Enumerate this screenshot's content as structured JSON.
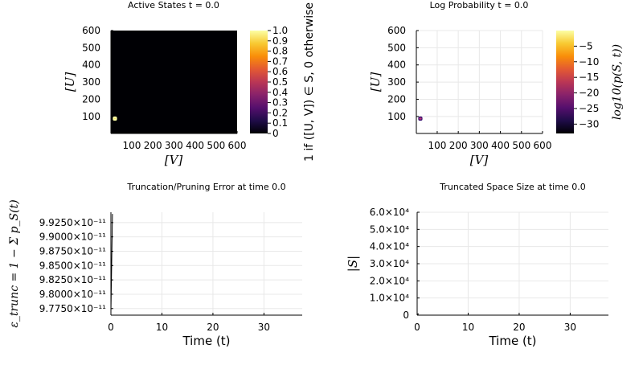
{
  "colors": {
    "colormap": [
      "#000004",
      "#1f0c48",
      "#550f6d",
      "#88226a",
      "#ba3655",
      "#e35933",
      "#f98e09",
      "#f8c932",
      "#fcffa4"
    ],
    "axis": "#000000",
    "grid": "#e8e8e8",
    "series": "#000000"
  },
  "chart_data": [
    {
      "id": "active-states",
      "type": "heatmap",
      "title": "Active States t = 0.0",
      "xlabel": "[V]",
      "ylabel": "[U]",
      "xlim": [
        1,
        600
      ],
      "ylim": [
        1,
        600
      ],
      "xticks": [
        "100",
        "200",
        "300",
        "400",
        "500",
        "600"
      ],
      "yticks": [
        "100",
        "200",
        "300",
        "400",
        "500",
        "600"
      ],
      "colorbar": {
        "label": "1 if ([U, V]) ∈ S, 0 otherwise",
        "range": [
          0,
          1
        ],
        "ticks": [
          "0",
          "0.1",
          "0.2",
          "0.3",
          "0.4",
          "0.5",
          "0.6",
          "0.7",
          "0.8",
          "0.9",
          "1.0"
        ]
      },
      "active_region": {
        "v_range": [
          10,
          30
        ],
        "u_range": [
          75,
          100
        ],
        "value": 1
      },
      "background_value": 0
    },
    {
      "id": "log-probability",
      "type": "heatmap",
      "title": "Log Probability t = 0.0",
      "xlabel": "[V]",
      "ylabel": "[U]",
      "xlim": [
        1,
        600
      ],
      "ylim": [
        1,
        600
      ],
      "xticks": [
        "100",
        "200",
        "300",
        "400",
        "500",
        "600"
      ],
      "yticks": [
        "100",
        "200",
        "300",
        "400",
        "500",
        "600"
      ],
      "grid": true,
      "colorbar": {
        "label": "log10(p(S, t))",
        "range": [
          -33,
          0
        ],
        "ticks": [
          "-5",
          "-10",
          "-15",
          "-20",
          "-25",
          "-30"
        ]
      },
      "active_region": {
        "v_range": [
          10,
          30
        ],
        "u_range": [
          75,
          100
        ]
      }
    },
    {
      "id": "truncation-error",
      "type": "line",
      "title": "Truncation/Pruning Error at time 0.0",
      "xlabel": "Time (t)",
      "ylabel": "ε_trunc = 1 − Σ p_S(t)",
      "xlim": [
        0,
        37.5
      ],
      "xticks": [
        "0",
        "10",
        "20",
        "30"
      ],
      "yticks": [
        "9.7750×10⁻¹¹",
        "9.8000×10⁻¹¹",
        "9.8250×10⁻¹¹",
        "9.8500×10⁻¹¹",
        "9.8750×10⁻¹¹",
        "9.9000×10⁻¹¹",
        "9.9250×10⁻¹¹"
      ],
      "grid": true,
      "series": [
        {
          "x": [
            0,
            0.3
          ],
          "y": [
            9.77e-11,
            9.94e-11
          ]
        }
      ]
    },
    {
      "id": "space-size",
      "type": "line",
      "title": "Truncated Space Size at time 0.0",
      "xlabel": "Time (t)",
      "ylabel": "|S|",
      "xlim": [
        0,
        37.5
      ],
      "ylim": [
        0,
        60000
      ],
      "xticks": [
        "0",
        "10",
        "20",
        "30"
      ],
      "yticks": [
        "0",
        "1.0×10⁴",
        "2.0×10⁴",
        "3.0×10⁴",
        "4.0×10⁴",
        "5.0×10⁴",
        "6.0×10⁴"
      ],
      "grid": true,
      "series": [
        {
          "x": [
            0,
            0.3
          ],
          "y": [
            600,
            700
          ]
        }
      ]
    }
  ]
}
